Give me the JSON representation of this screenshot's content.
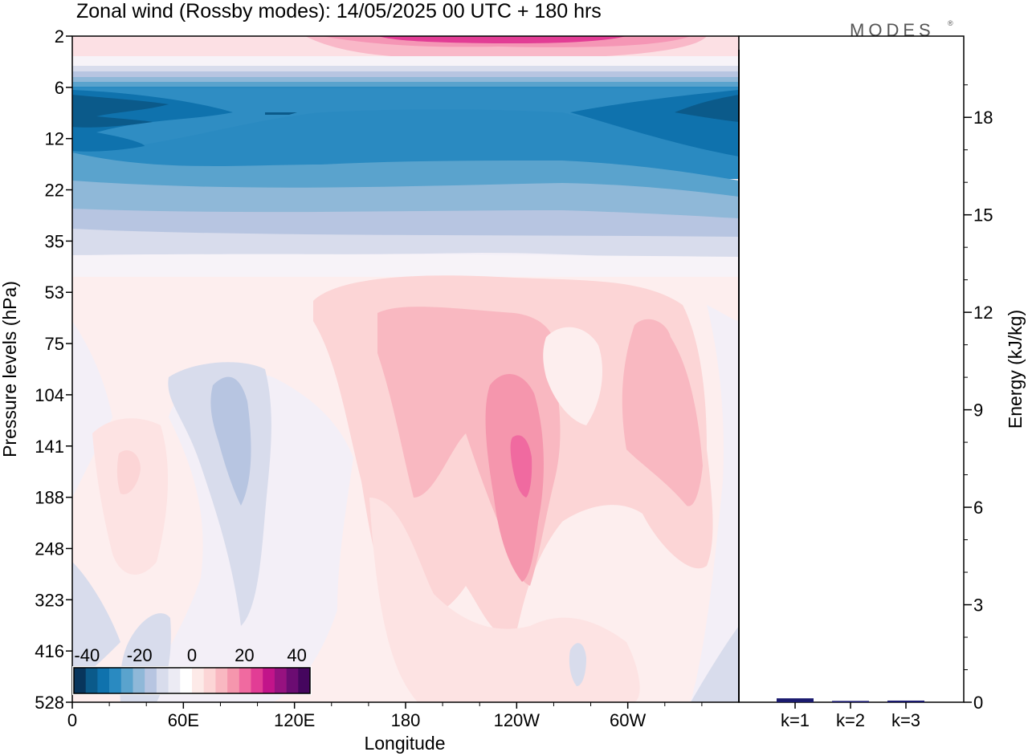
{
  "chart_data": {
    "type": "heatmap",
    "title": "Zonal wind (Rossby modes):  14/05/2025  00 UTC  + 180 hrs",
    "logo": "MODES",
    "logo_mark": "®",
    "xlabel": "Longitude",
    "ylabel": "Pressure levels (hPa)",
    "x_ticks": [
      "0",
      "60E",
      "120E",
      "180",
      "120W",
      "60W"
    ],
    "x_tick_values": [
      0,
      60,
      120,
      180,
      240,
      300
    ],
    "xlim": [
      0,
      360
    ],
    "y_ticks": [
      "2",
      "6",
      "12",
      "22",
      "35",
      "53",
      "75",
      "104",
      "141",
      "188",
      "248",
      "323",
      "416",
      "528"
    ],
    "colorbar": {
      "ticks": [
        "-40",
        "-20",
        "0",
        "20",
        "40"
      ],
      "tick_values": [
        -40,
        -20,
        0,
        20,
        40
      ],
      "range": [
        -45,
        45
      ],
      "colors": [
        "#08355c",
        "#0b5a8a",
        "#0f72ad",
        "#2a8ac1",
        "#5aa3cd",
        "#8fb8d8",
        "#b7c5e1",
        "#d8dcec",
        "#ecebf4",
        "#ffffff",
        "#fdeae8",
        "#fcd5d6",
        "#f9b8c1",
        "#f596ad",
        "#f06aa0",
        "#e23d95",
        "#c2148a",
        "#961280",
        "#6b0c72",
        "#45065e"
      ]
    },
    "field": {
      "description_of_levels": "zonal wind in m/s by pressure level and longitude",
      "levels": [
        {
          "hPa": "2",
          "wind_range": [
            5,
            30
          ]
        },
        {
          "hPa": "6",
          "wind_range": [
            -15,
            -5
          ]
        },
        {
          "hPa": "12",
          "wind_range": [
            -40,
            -20
          ]
        },
        {
          "hPa": "22",
          "wind_range": [
            -25,
            -15
          ]
        },
        {
          "hPa": "35",
          "wind_range": [
            -10,
            -3
          ]
        },
        {
          "hPa": "53",
          "wind_range": [
            -2,
            5
          ]
        },
        {
          "hPa": "104",
          "wind_range": [
            -10,
            15
          ]
        },
        {
          "hPa": "141",
          "wind_range": [
            -10,
            25
          ]
        },
        {
          "hPa": "248",
          "wind_range": [
            -5,
            15
          ]
        },
        {
          "hPa": "528",
          "wind_range": [
            -5,
            5
          ]
        }
      ]
    },
    "energy_panel": {
      "type": "bar",
      "ylabel": "Energy (kJ/kg)",
      "categories": [
        "k=1",
        "k=2",
        "k=3"
      ],
      "values": [
        0.12,
        0.04,
        0.05
      ],
      "ylim": [
        0,
        20.5
      ],
      "y_ticks": [
        "0",
        "3",
        "6",
        "9",
        "12",
        "15",
        "18"
      ],
      "y_tick_values": [
        0,
        3,
        6,
        9,
        12,
        15,
        18
      ],
      "bar_color": "#1a1a6e"
    }
  }
}
